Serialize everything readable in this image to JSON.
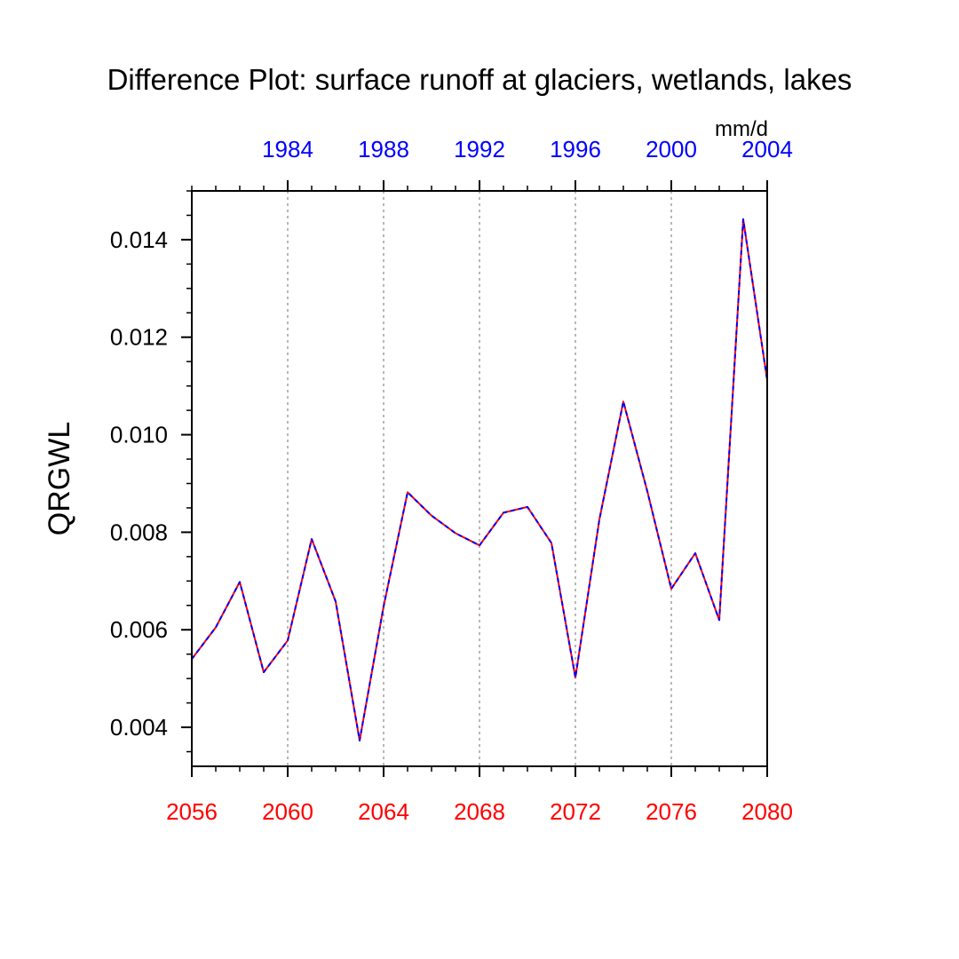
{
  "chart_data": {
    "type": "line",
    "title": "Difference Plot: surface runoff at glaciers, wetlands, lakes",
    "ylabel": "QRGWL",
    "units": "mm/d",
    "xlim": [
      2056,
      2080
    ],
    "ylim": [
      0.0032,
      0.015
    ],
    "x_ticks": [
      2056,
      2060,
      2064,
      2068,
      2072,
      2076,
      2080
    ],
    "x_tick_labels": [
      "2056",
      "2060",
      "2064",
      "2068",
      "2072",
      "2076",
      "2080"
    ],
    "top_axis": {
      "ticks": [
        1984,
        1988,
        1992,
        1996,
        2000,
        2004
      ],
      "tick_labels": [
        "1984",
        "1988",
        "1992",
        "1996",
        "2000",
        "2004"
      ],
      "offset_years": 76
    },
    "y_ticks": [
      0.004,
      0.006,
      0.008,
      0.01,
      0.012,
      0.014
    ],
    "y_tick_labels": [
      "0.004",
      "0.006",
      "0.008",
      "0.010",
      "0.012",
      "0.014"
    ],
    "grid": "vertical dotted at major x ticks",
    "x": [
      2056,
      2057,
      2058,
      2059,
      2060,
      2061,
      2062,
      2063,
      2064,
      2065,
      2066,
      2067,
      2068,
      2069,
      2070,
      2071,
      2072,
      2073,
      2074,
      2075,
      2076,
      2077,
      2078,
      2079,
      2080
    ],
    "series": [
      {
        "name": "difference",
        "values": [
          0.0054,
          0.00605,
          0.00698,
          0.00513,
          0.00578,
          0.00786,
          0.00658,
          0.00373,
          0.00648,
          0.00882,
          0.00834,
          0.00798,
          0.00773,
          0.0084,
          0.00852,
          0.00778,
          0.00502,
          0.00826,
          0.01068,
          0.00884,
          0.00684,
          0.00757,
          0.0062,
          0.01442,
          0.01112
        ]
      }
    ],
    "colors": {
      "bottom_axis_labels": "#ff0000",
      "top_axis_labels": "#0000ff",
      "line_solid": "#ff0000",
      "line_dashed": "#0000ff",
      "grid": "#a0a0a0",
      "text": "#000000"
    }
  }
}
